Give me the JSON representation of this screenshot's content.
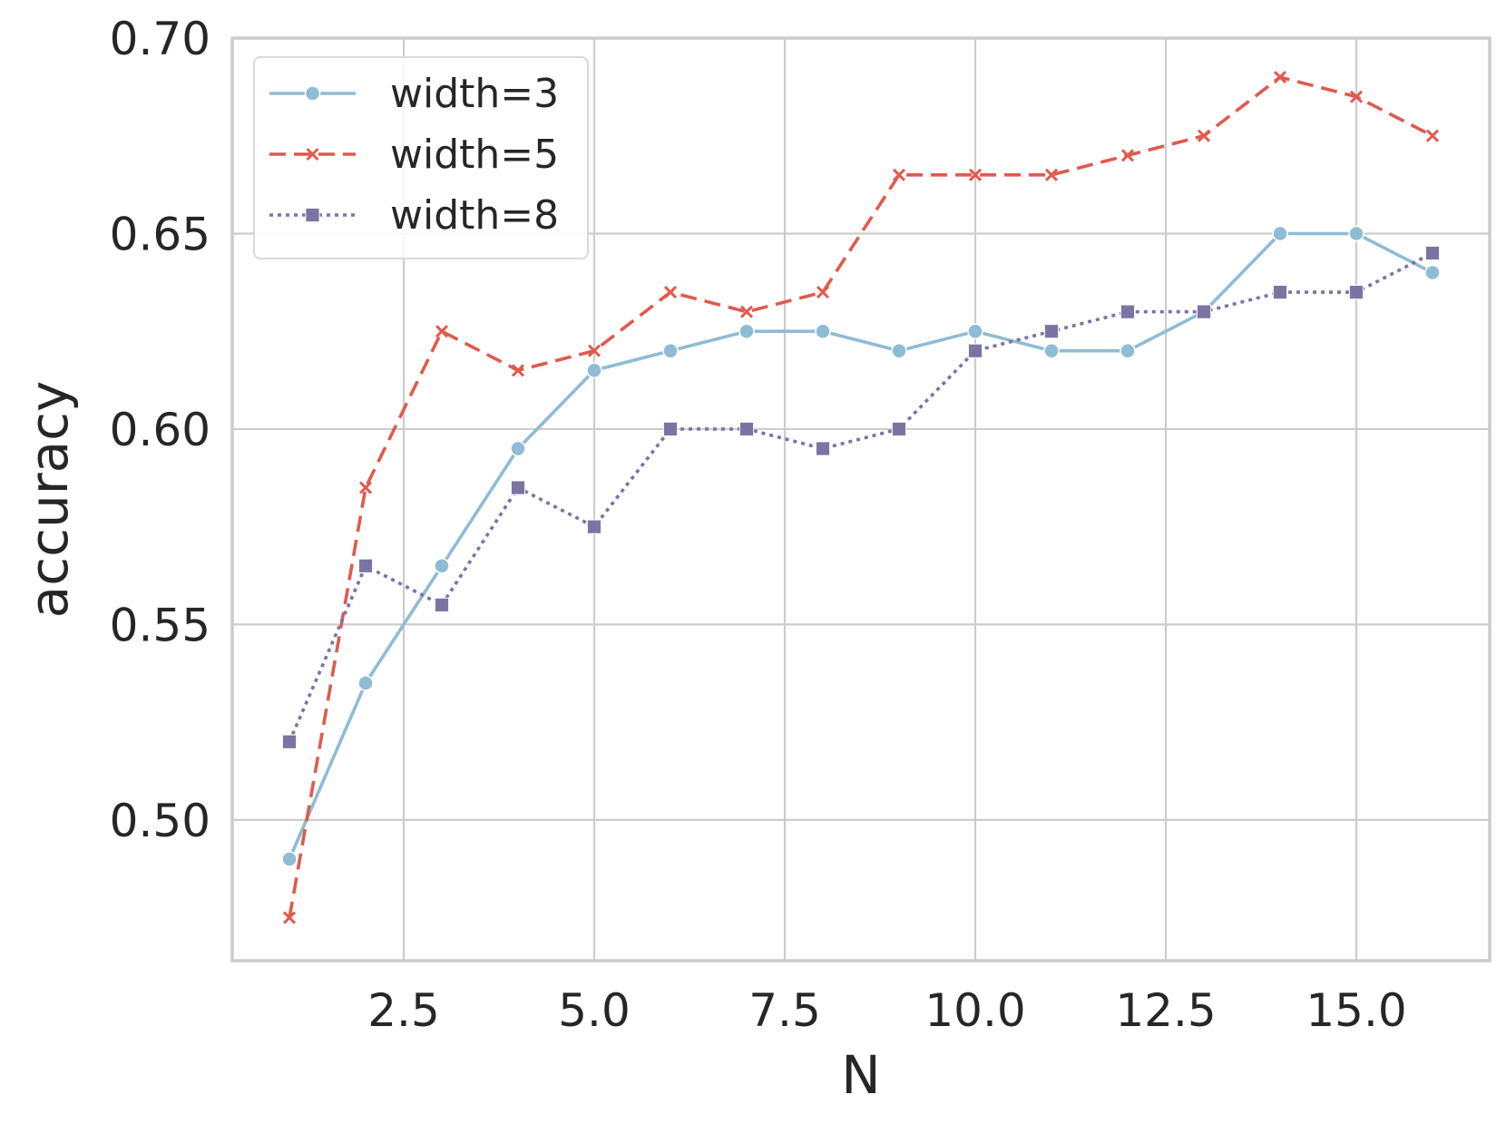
{
  "chart_data": {
    "type": "line",
    "title": "",
    "xlabel": "N",
    "ylabel": "accuracy",
    "xlim": [
      0.25,
      16.75
    ],
    "ylim": [
      0.464,
      0.7
    ],
    "xticks": [
      2.5,
      5.0,
      7.5,
      10.0,
      12.5,
      15.0
    ],
    "xtick_labels": [
      "2.5",
      "5.0",
      "7.5",
      "10.0",
      "12.5",
      "15.0"
    ],
    "yticks": [
      0.5,
      0.55,
      0.6,
      0.65,
      0.7
    ],
    "ytick_labels": [
      "0.50",
      "0.55",
      "0.60",
      "0.65",
      "0.70"
    ],
    "grid": true,
    "legend_position": "top-left",
    "x": [
      1,
      2,
      3,
      4,
      5,
      6,
      7,
      8,
      9,
      10,
      11,
      12,
      13,
      14,
      15,
      16
    ],
    "series": [
      {
        "name": "width=3",
        "color": "#8fbcd4",
        "marker": "circle",
        "linestyle": "solid",
        "values": [
          0.49,
          0.535,
          0.565,
          0.595,
          0.615,
          0.62,
          0.625,
          0.625,
          0.62,
          0.625,
          0.62,
          0.62,
          0.63,
          0.65,
          0.65,
          0.64
        ]
      },
      {
        "name": "width=5",
        "color": "#e05a4e",
        "marker": "x",
        "linestyle": "dashed",
        "values": [
          0.475,
          0.585,
          0.625,
          0.615,
          0.62,
          0.635,
          0.63,
          0.635,
          0.665,
          0.665,
          0.665,
          0.67,
          0.675,
          0.69,
          0.685,
          0.675
        ]
      },
      {
        "name": "width=8",
        "color": "#7b74a3",
        "marker": "square",
        "linestyle": "dotted",
        "values": [
          0.52,
          0.565,
          0.555,
          0.585,
          0.575,
          0.6,
          0.6,
          0.595,
          0.6,
          0.62,
          0.625,
          0.63,
          0.63,
          0.635,
          0.635,
          0.645
        ]
      }
    ]
  }
}
